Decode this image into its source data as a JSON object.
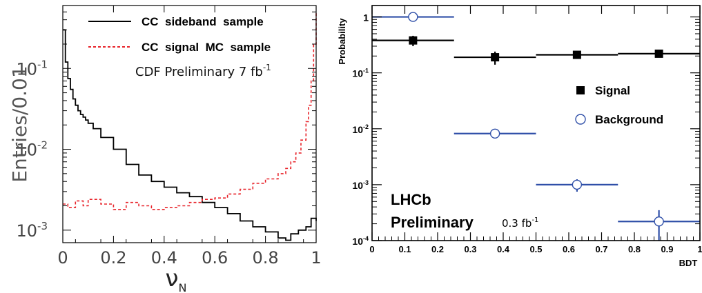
{
  "chart_data": [
    {
      "type": "line",
      "xlabel": "ν",
      "xlabel_sub": "N",
      "ylabel": "Entries/0.01",
      "xlim": [
        0,
        1
      ],
      "ylim": [
        0.0007,
        0.6
      ],
      "y_scale": "log",
      "x_ticks": [
        "0",
        "0.2",
        "0.4",
        "0.6",
        "0.8",
        "1"
      ],
      "y_ticks": [
        {
          "value": 0.1,
          "base": "10",
          "exp": "-1"
        },
        {
          "value": 0.01,
          "base": "10",
          "exp": "-2"
        },
        {
          "value": 0.001,
          "base": "10",
          "exp": "-3"
        }
      ],
      "annotation": {
        "text": "CDF Preliminary 7 fb",
        "sup": "-1"
      },
      "legend_position": "top-right",
      "series": [
        {
          "name": "CC  sideband  sample",
          "color": "#000000",
          "style": "solid-step",
          "x": [
            0.0,
            0.01,
            0.02,
            0.03,
            0.04,
            0.05,
            0.06,
            0.07,
            0.08,
            0.09,
            0.1,
            0.12,
            0.15,
            0.2,
            0.25,
            0.3,
            0.35,
            0.4,
            0.45,
            0.5,
            0.55,
            0.6,
            0.65,
            0.7,
            0.75,
            0.8,
            0.85,
            0.88,
            0.9,
            0.93,
            0.96,
            0.98,
            1.0
          ],
          "values": [
            0.3,
            0.12,
            0.075,
            0.055,
            0.042,
            0.035,
            0.03,
            0.027,
            0.025,
            0.023,
            0.021,
            0.018,
            0.014,
            0.01,
            0.0065,
            0.0048,
            0.004,
            0.0034,
            0.0029,
            0.0026,
            0.0022,
            0.0019,
            0.0016,
            0.0013,
            0.0011,
            0.00095,
            0.0008,
            0.00075,
            0.0009,
            0.001,
            0.0011,
            0.0014,
            0.0013
          ]
        },
        {
          "name": "CC  signal  MC  sample",
          "color": "#e8232a",
          "style": "dashed-step",
          "x": [
            0.0,
            0.02,
            0.05,
            0.08,
            0.1,
            0.15,
            0.2,
            0.25,
            0.3,
            0.35,
            0.4,
            0.45,
            0.5,
            0.55,
            0.6,
            0.65,
            0.7,
            0.75,
            0.8,
            0.85,
            0.88,
            0.9,
            0.92,
            0.94,
            0.96,
            0.97,
            0.98,
            0.99,
            1.0
          ],
          "values": [
            0.0021,
            0.0019,
            0.0023,
            0.002,
            0.0024,
            0.0021,
            0.0018,
            0.0022,
            0.002,
            0.0018,
            0.0019,
            0.002,
            0.0022,
            0.0024,
            0.0025,
            0.0028,
            0.0032,
            0.0038,
            0.0043,
            0.005,
            0.0058,
            0.007,
            0.009,
            0.013,
            0.022,
            0.035,
            0.07,
            0.2,
            0.5
          ]
        }
      ]
    },
    {
      "type": "scatter",
      "xlabel": "BDT",
      "ylabel": "Probability",
      "xlim": [
        0,
        1
      ],
      "ylim": [
        0.0001,
        1.6
      ],
      "y_scale": "log",
      "x_ticks": [
        "0",
        "0.1",
        "0.2",
        "0.3",
        "0.4",
        "0.5",
        "0.6",
        "0.7",
        "0.8",
        "0.9",
        "1"
      ],
      "y_ticks": [
        {
          "value": 1,
          "base": "1",
          "exp": ""
        },
        {
          "value": 0.1,
          "base": "10",
          "exp": "-1"
        },
        {
          "value": 0.01,
          "base": "10",
          "exp": "-2"
        },
        {
          "value": 0.001,
          "base": "10",
          "exp": "-3"
        },
        {
          "value": 0.0001,
          "base": "10",
          "exp": "-4"
        }
      ],
      "annotation": {
        "line1": "LHCb",
        "line2": "Preliminary",
        "lumi": "0.3 fb",
        "lumi_sup": "-1"
      },
      "legend_position": "middle-right",
      "series": [
        {
          "name": "Signal",
          "color": "#000000",
          "marker": "filled-square",
          "x": [
            0.125,
            0.375,
            0.625,
            0.875
          ],
          "x_halfwidth": [
            0.125,
            0.125,
            0.125,
            0.125
          ],
          "values": [
            0.38,
            0.19,
            0.21,
            0.22
          ],
          "y_err": [
            0.08,
            0.05,
            0.02,
            0.02
          ]
        },
        {
          "name": "Background",
          "color": "#2f4fa8",
          "marker": "open-circle",
          "x": [
            0.125,
            0.375,
            0.625,
            0.875
          ],
          "x_halfwidth": [
            0.125,
            0.125,
            0.125,
            0.125
          ],
          "values": [
            1.0,
            0.0082,
            0.001,
            0.00022
          ],
          "y_err": [
            0.0,
            0.0,
            0.00025,
            0.00013
          ]
        }
      ]
    }
  ]
}
